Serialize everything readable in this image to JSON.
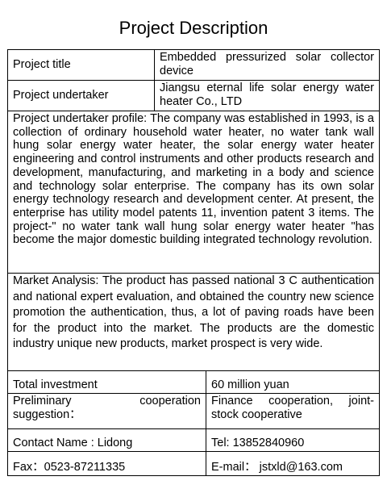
{
  "title": "Project Description",
  "project_title": {
    "label": "Project title",
    "value": "Embedded pressurized solar collector device"
  },
  "project_undertaker": {
    "label": "Project undertaker",
    "value": "Jiangsu eternal life solar energy water heater Co., LTD"
  },
  "profile": "Project undertaker profile: The company was established in 1993, is a collection of ordinary household water heater, no water tank wall hung solar energy water heater, the solar energy water heater engineering and control instruments and other products research and development, manufacturing, and marketing in a body and science and technology solar enterprise. The company has its own solar energy technology research and development center. At present, the enterprise has utility model patents 11, invention patent 3 items. The project-\" no water tank wall hung solar energy water heater \"has become the major domestic building integrated technology revolution.",
  "market_analysis": "Market Analysis: The product has passed national 3 C authentication and national expert evaluation, and obtained the country new science promotion the authentication, thus, a lot of paving roads have been for the product into the market. The products are the domestic industry unique new products, market prospect is very wide.",
  "total_investment": {
    "label": "Total investment",
    "value": "60 million yuan"
  },
  "cooperation": {
    "label": "Preliminary cooperation suggestion：",
    "value": "Finance cooperation, joint-stock cooperative"
  },
  "contact": {
    "name": "Contact Name : Lidong",
    "tel": "Tel: 13852840960"
  },
  "fax_email": {
    "fax": "Fax：0523-87211335",
    "email": "E-mail： jstxld@163.com"
  }
}
